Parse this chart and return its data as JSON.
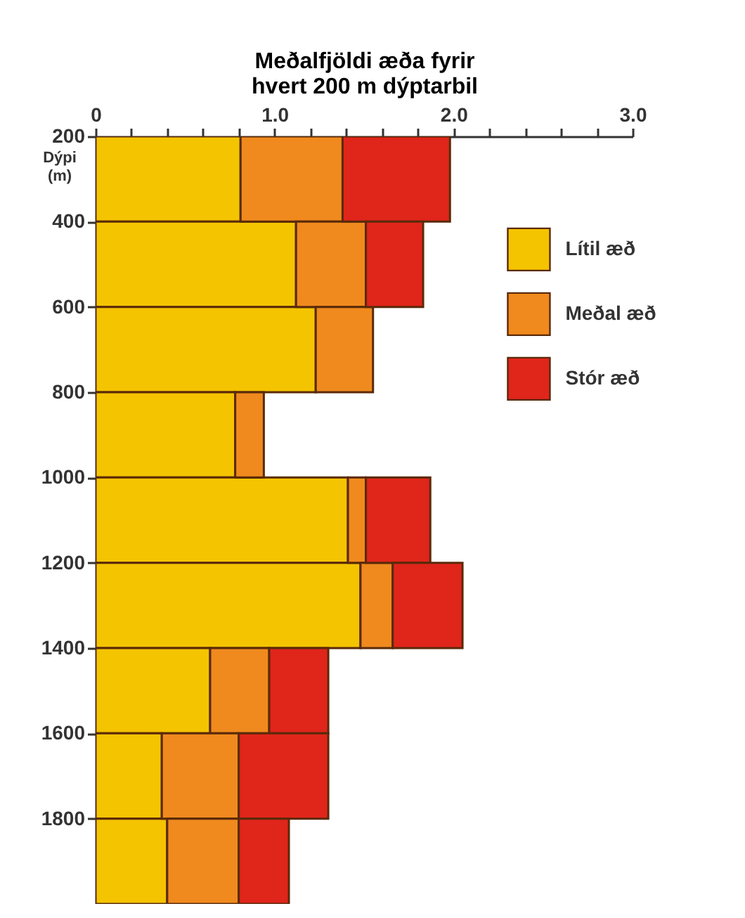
{
  "chart_data": {
    "type": "bar",
    "orientation": "horizontal",
    "stacked": true,
    "xlabel": "Meðalfjöldi æða fyrir\nhvert 200 m dýptarbil",
    "ylabel": "Dýpi\n(m)",
    "x": [
      300,
      500,
      700,
      900,
      1100,
      1300,
      1500,
      1700,
      1900
    ],
    "series": [
      {
        "name": "Lítil æð",
        "color": "#f5c400",
        "values": [
          0.81,
          1.12,
          1.23,
          0.78,
          1.41,
          1.48,
          0.64,
          0.37,
          0.4
        ]
      },
      {
        "name": "Meðal æð",
        "color": "#f08a1e",
        "values": [
          0.57,
          0.39,
          0.32,
          0.16,
          0.1,
          0.18,
          0.33,
          0.43,
          0.4
        ]
      },
      {
        "name": "Stór æð",
        "color": "#e0251b",
        "values": [
          0.6,
          0.32,
          null,
          null,
          0.36,
          0.39,
          0.33,
          0.5,
          0.28
        ]
      }
    ],
    "xlim": [
      0,
      3
    ],
    "xticks": [
      0,
      {
        "value": 0.2,
        "label": null
      },
      {
        "value": 0.4,
        "label": null
      },
      {
        "value": 0.6,
        "label": null
      },
      {
        "value": 0.8,
        "label": null
      },
      {
        "value": 1,
        "label": "1.0"
      },
      {
        "value": 1.2,
        "label": null
      },
      {
        "value": 1.4,
        "label": null
      },
      {
        "value": 1.6,
        "label": null
      },
      {
        "value": 1.8,
        "label": null
      },
      {
        "value": 2,
        "label": "2.0"
      },
      {
        "value": 2.2,
        "label": null
      },
      {
        "value": 2.4,
        "label": null
      },
      {
        "value": 2.6,
        "label": null
      },
      {
        "value": 2.8,
        "label": null
      },
      {
        "value": 3,
        "label": "3.0"
      }
    ],
    "ylim": [
      2000,
      200
    ],
    "yticks": [
      200,
      400,
      600,
      800,
      1000,
      1200,
      1400,
      1600,
      1800
    ],
    "legend": "right"
  }
}
